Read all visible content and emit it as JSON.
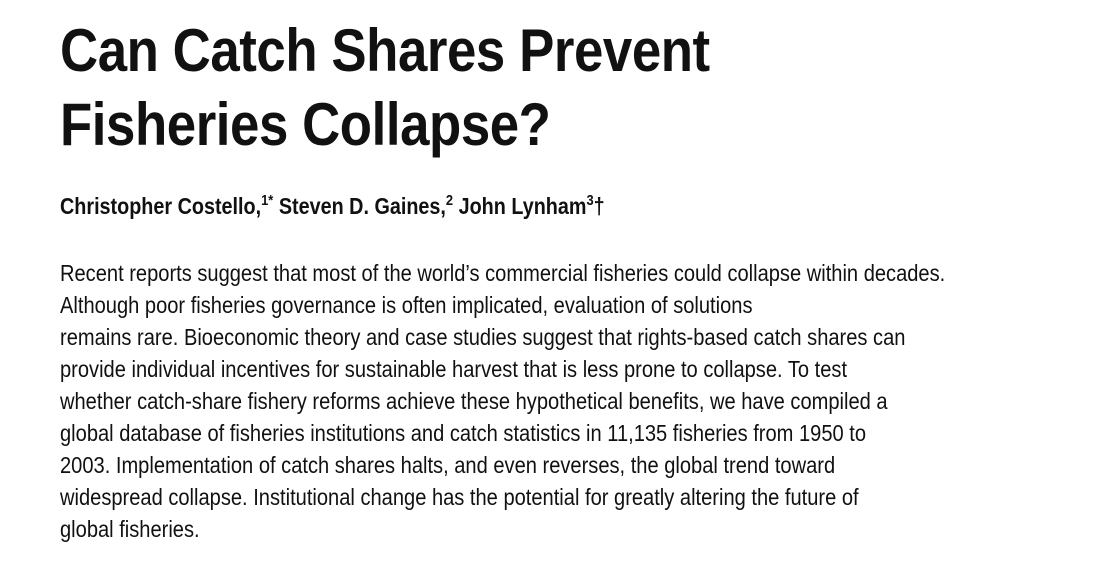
{
  "title": {
    "line1": "Can Catch Shares Prevent",
    "line2": "Fisheries Collapse?"
  },
  "authors": [
    {
      "name": "Christopher Costello,",
      "sup": "1*"
    },
    {
      "name": "Steven D. Gaines,",
      "sup": "2"
    },
    {
      "name": "John Lynham",
      "sup": "3",
      "suffix": "†"
    }
  ],
  "abstract": {
    "lines": [
      "Recent reports suggest that most of the world’s commercial fisheries could collapse within decades.",
      "Although poor fisheries governance is often implicated, evaluation of solutions",
      "remains rare. Bioeconomic theory and case studies suggest that rights-based catch shares can",
      "provide individual incentives for sustainable harvest that is less prone to collapse. To test",
      "whether catch-share fishery reforms achieve these hypothetical benefits, we have compiled a",
      "global database of fisheries institutions and catch statistics in 11,135 fisheries from 1950 to",
      "2003. Implementation of catch shares halts, and even reverses, the global trend toward",
      "widespread collapse. Institutional change has the potential for greatly altering the future of",
      "global fisheries."
    ]
  }
}
